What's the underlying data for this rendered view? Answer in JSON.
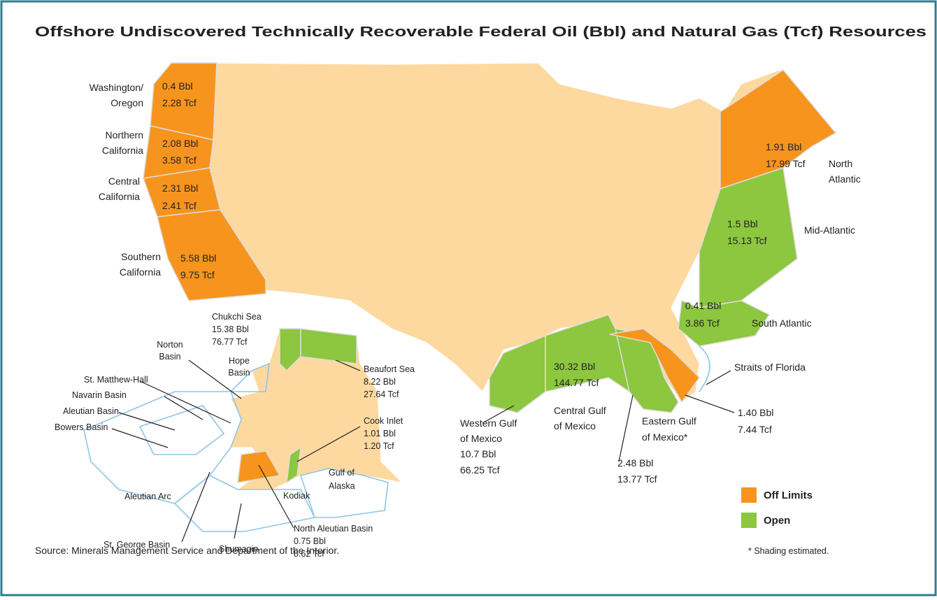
{
  "title": "Offshore Undiscovered Technically Recoverable Federal Oil (Bbl) and Natural Gas (Tcf) Resources",
  "regions": [
    {
      "name": [
        "Washington/",
        "Oregon"
      ],
      "oil": "0.4 Bbl",
      "gas": "2.28 Tcf",
      "status": "Off Limits"
    },
    {
      "name": [
        "Northern",
        "California"
      ],
      "oil": "2.08 Bbl",
      "gas": "3.58 Tcf",
      "status": "Off Limits"
    },
    {
      "name": [
        "Central",
        "California"
      ],
      "oil": "2.31 Bbl",
      "gas": "2.41 Tcf",
      "status": "Off Limits"
    },
    {
      "name": [
        "Southern",
        "California"
      ],
      "oil": "5.58 Bbl",
      "gas": "9.75 Tcf",
      "status": "Off Limits"
    },
    {
      "name": [
        "North",
        "Atlantic"
      ],
      "oil": "1.91 Bbl",
      "gas": "17.99 Tcf",
      "status": "Off Limits"
    },
    {
      "name": [
        "Mid-Atlantic"
      ],
      "oil": "1.5 Bbl",
      "gas": "15.13 Tcf",
      "status": "Open"
    },
    {
      "name": [
        "South Atlantic"
      ],
      "oil": "0.41 Bbl",
      "gas": "3.86 Tcf",
      "status": "Open"
    },
    {
      "name": [
        "Straits of Florida"
      ],
      "oil": "1.40 Bbl",
      "gas": "7.44 Tcf",
      "status": "Off Limits"
    },
    {
      "name": [
        "Western Gulf",
        "of Mexico"
      ],
      "oil": "10.7 Bbl",
      "gas": "66.25 Tcf",
      "status": "Open"
    },
    {
      "name": [
        "Central Gulf",
        "of Mexico"
      ],
      "oil": "30.32 Bbl",
      "gas": "144.77 Tcf",
      "status": "Open"
    },
    {
      "name": [
        "Eastern Gulf",
        "of Mexico*"
      ],
      "oil": "2.48 Bbl",
      "gas": "13.77 Tcf",
      "status": "Open"
    },
    {
      "name": [
        "Chukchi Sea"
      ],
      "oil": "15.38 Bbl",
      "gas": "76.77 Tcf",
      "status": "Open"
    },
    {
      "name": [
        "Beaufort Sea"
      ],
      "oil": "8.22 Bbl",
      "gas": "27.64 Tcf",
      "status": "Open"
    },
    {
      "name": [
        "Cook Inlet"
      ],
      "oil": "1.01 Bbl",
      "gas": "1.20 Tcf",
      "status": "Open"
    },
    {
      "name": [
        "North Aleutian Basin"
      ],
      "oil": "0.75 Bbl",
      "gas": "8.62 Tcf",
      "status": "Off Limits"
    }
  ],
  "basins": [
    [
      "Norton",
      "Basin"
    ],
    [
      "Hope",
      "Basin"
    ],
    [
      "St. Matthew-Hall"
    ],
    [
      "Navarin Basin"
    ],
    [
      "Aleutian Basin"
    ],
    [
      "Bowers Basin"
    ],
    [
      "Aleutian Arc"
    ],
    [
      "St. George Basin"
    ],
    [
      "Shumagin"
    ],
    [
      "Kodiak"
    ],
    [
      "Gulf of",
      "Alaska"
    ]
  ],
  "legend": [
    {
      "label": "Off Limits",
      "color": "#f7941d"
    },
    {
      "label": "Open",
      "color": "#8dc63f"
    }
  ],
  "footnote": "* Shading estimated.",
  "source": "Source: Minerals Management Service and Department of the Interior."
}
